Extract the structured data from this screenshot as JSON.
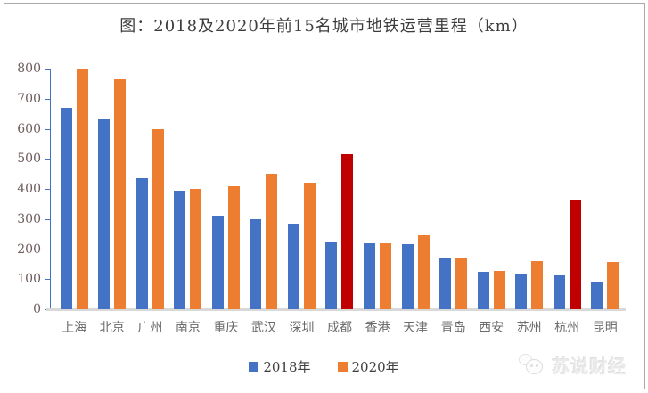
{
  "title": "图：2018及2020年前15名城市地铁运营里程（km）",
  "watermark": "苏说财经",
  "colors": {
    "series_2018": "#4472C4",
    "series_2020": "#ED7D31",
    "highlight": "#C00000",
    "axis_line": "#4472C4",
    "baseline": "#D9D9D9"
  },
  "legend": [
    {
      "label": "2018年",
      "color": "#4472C4"
    },
    {
      "label": "2020年",
      "color": "#ED7D31"
    }
  ],
  "chart_data": {
    "type": "bar",
    "title": "图：2018及2020年前15名城市地铁运营里程（km）",
    "categories": [
      "上海",
      "北京",
      "广州",
      "南京",
      "重庆",
      "武汉",
      "深圳",
      "成都",
      "香港",
      "天津",
      "青岛",
      "西安",
      "苏州",
      "杭州",
      "昆明"
    ],
    "series": [
      {
        "name": "2018年",
        "color": "#4472C4",
        "values": [
          670,
          635,
          435,
          395,
          310,
          300,
          285,
          225,
          220,
          215,
          170,
          126,
          116,
          114,
          93
        ]
      },
      {
        "name": "2020年",
        "color": "#ED7D31",
        "highlight_color": "#C00000",
        "highlight_indices": [
          7,
          13
        ],
        "values": [
          800,
          765,
          600,
          400,
          410,
          450,
          420,
          515,
          220,
          245,
          170,
          128,
          160,
          365,
          158
        ]
      }
    ],
    "xlabel": "",
    "ylabel": "",
    "ylim": [
      0,
      800
    ],
    "yticks": [
      0,
      100,
      200,
      300,
      400,
      500,
      600,
      700,
      800
    ],
    "grid": false,
    "legend_position": "bottom"
  }
}
